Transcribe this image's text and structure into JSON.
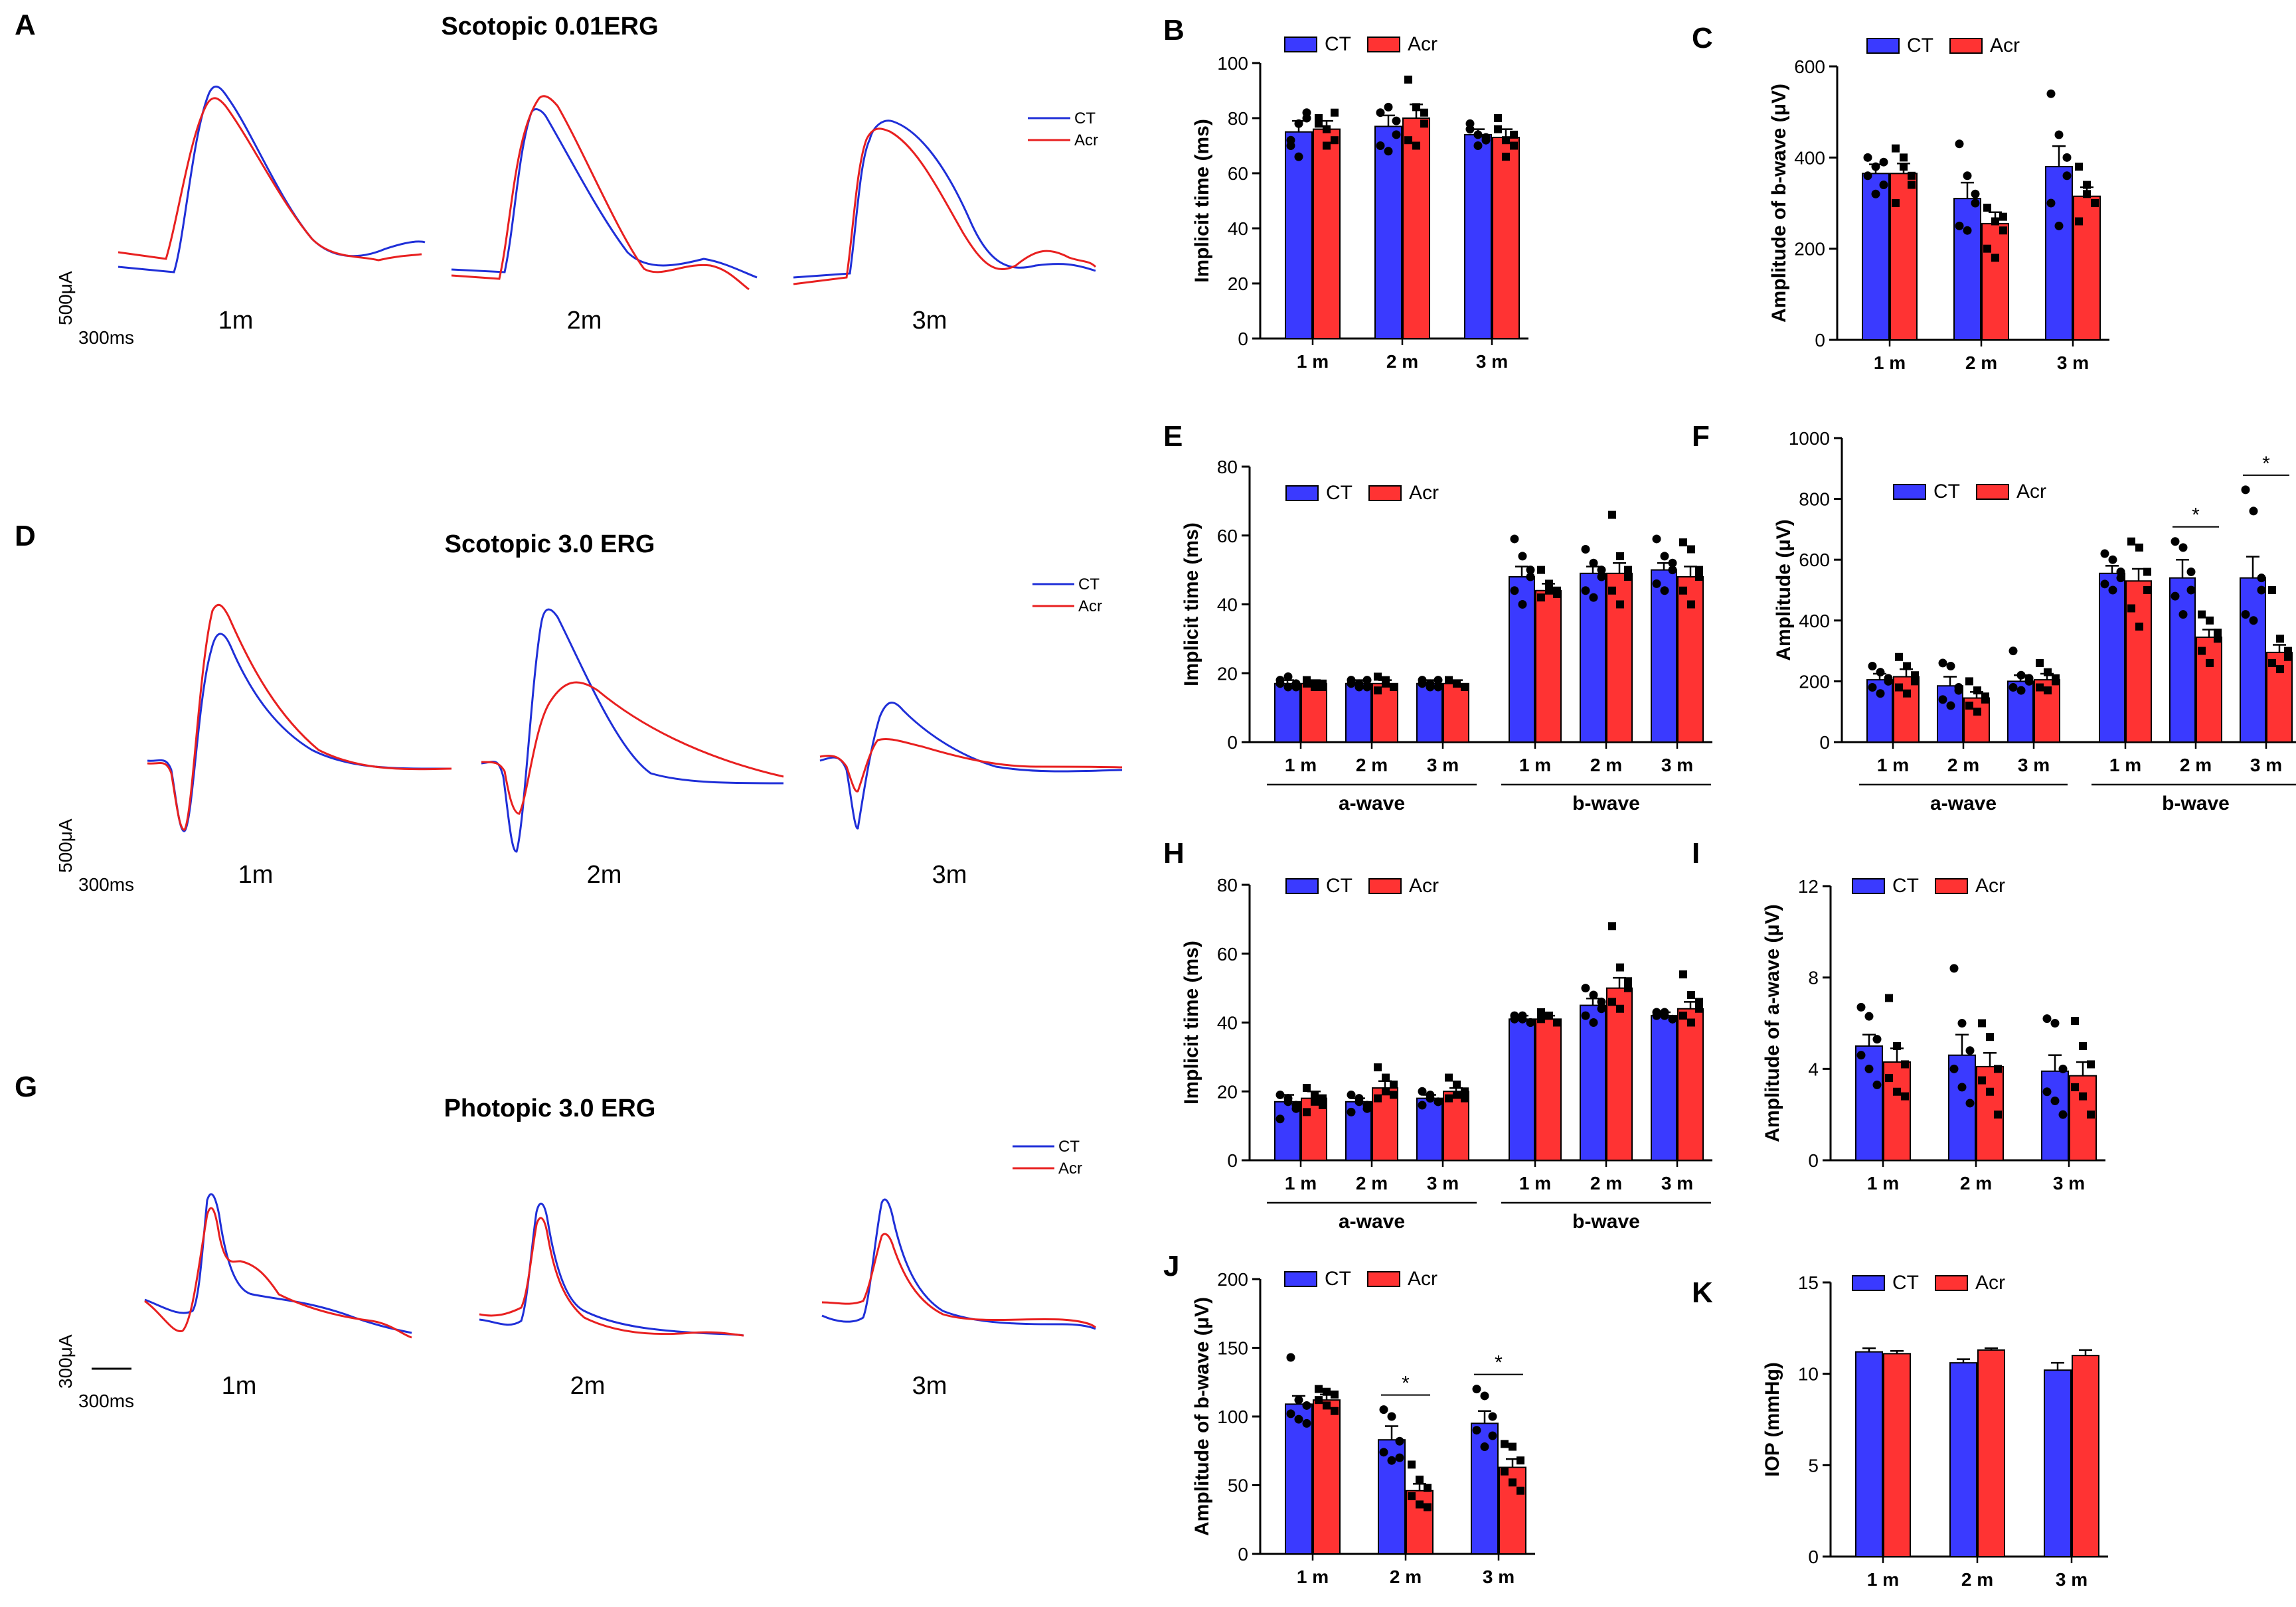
{
  "colors": {
    "ct": "#3a3aff",
    "acr": "#ff3333",
    "ct_trace": "#1f2fd8",
    "acr_trace": "#e82020",
    "ink": "#000000"
  },
  "legend": {
    "ct": "CT",
    "acr": "Acr"
  },
  "panel_letters": {
    "a": "A",
    "b": "B",
    "c": "C",
    "d": "D",
    "e": "E",
    "f": "F",
    "g": "G",
    "h": "H",
    "i": "I",
    "j": "J",
    "k": "K"
  },
  "traces": {
    "a": {
      "title": "Scotopic 0.01ERG",
      "labels": [
        "1m",
        "2m",
        "3m"
      ],
      "scale_amp": "500μA",
      "scale_time": "300ms"
    },
    "d": {
      "title": "Scotopic 3.0 ERG",
      "labels": [
        "1m",
        "2m",
        "3m"
      ],
      "scale_amp": "500μA",
      "scale_time": "300ms"
    },
    "g": {
      "title": "Photopic 3.0 ERG",
      "labels": [
        "1m",
        "2m",
        "3m"
      ],
      "scale_amp": "300μA",
      "scale_time": "300ms"
    }
  },
  "chart_data": [
    {
      "panel": "B",
      "type": "bar",
      "ylabel": "Implicit time (ms)",
      "ylim": [
        0,
        100
      ],
      "yticks": [
        0,
        20,
        40,
        60,
        80,
        100
      ],
      "categories": [
        "1 m",
        "2 m",
        "3 m"
      ],
      "series": [
        {
          "name": "CT",
          "values": [
            75,
            77,
            74
          ],
          "err": [
            4,
            4,
            2
          ],
          "points": [
            [
              70,
              78,
              82,
              72,
              66,
              80
            ],
            [
              82,
              84,
              74,
              70,
              68,
              79
            ],
            [
              76,
              74,
              72,
              78,
              70,
              73
            ]
          ]
        },
        {
          "name": "Acr",
          "values": [
            76,
            80,
            73
          ],
          "err": [
            3,
            5,
            3
          ],
          "points": [
            [
              80,
              76,
              72,
              78,
              70,
              82
            ],
            [
              94,
              84,
              78,
              72,
              70,
              82
            ],
            [
              80,
              72,
              70,
              76,
              66,
              74
            ]
          ]
        }
      ],
      "significance": []
    },
    {
      "panel": "C",
      "type": "bar",
      "ylabel": "Amplitude of b-wave (μV)",
      "ylim": [
        0,
        600
      ],
      "yticks": [
        0,
        200,
        400,
        600
      ],
      "categories": [
        "1 m",
        "2 m",
        "3 m"
      ],
      "series": [
        {
          "name": "CT",
          "values": [
            365,
            310,
            380
          ],
          "err": [
            20,
            35,
            45
          ],
          "points": [
            [
              400,
              380,
              340,
              360,
              320,
              390
            ],
            [
              430,
              360,
              300,
              250,
              240,
              320
            ],
            [
              540,
              450,
              360,
              300,
              250,
              400
            ]
          ]
        },
        {
          "name": "Acr",
          "values": [
            365,
            255,
            315
          ],
          "err": [
            22,
            25,
            20
          ],
          "points": [
            [
              420,
              400,
              340,
              300,
              380,
              360
            ],
            [
              290,
              260,
              240,
              200,
              180,
              270
            ],
            [
              380,
              340,
              300,
              260,
              320,
              300
            ]
          ]
        }
      ],
      "significance": []
    },
    {
      "panel": "E",
      "type": "bar",
      "ylabel": "Implicit time (ms)",
      "ylim": [
        0,
        80
      ],
      "yticks": [
        0,
        20,
        40,
        60,
        80
      ],
      "categories": [
        "1 m",
        "2 m",
        "3 m",
        "1 m",
        "2 m",
        "3 m"
      ],
      "groups": [
        {
          "label": "a-wave",
          "span": [
            0,
            2
          ]
        },
        {
          "label": "b-wave",
          "span": [
            3,
            5
          ]
        }
      ],
      "series": [
        {
          "name": "CT",
          "values": [
            17,
            17,
            17,
            48,
            49,
            50
          ],
          "err": [
            1,
            1,
            1,
            3,
            2,
            2
          ],
          "points": [
            [
              18,
              16,
              17,
              17,
              19,
              16
            ],
            [
              18,
              17,
              16,
              17,
              16,
              18
            ],
            [
              18,
              17,
              16,
              17,
              16,
              18
            ],
            [
              59,
              54,
              48,
              44,
              40,
              50
            ],
            [
              56,
              52,
              48,
              44,
              42,
              50
            ],
            [
              59,
              54,
              50,
              46,
              44,
              52
            ]
          ]
        },
        {
          "name": "Acr",
          "values": [
            17,
            17,
            17,
            44,
            49,
            48
          ],
          "err": [
            1,
            1,
            1,
            2,
            3,
            3
          ],
          "points": [
            [
              18,
              17,
              16,
              17,
              16,
              17
            ],
            [
              19,
              18,
              16,
              15,
              17,
              16
            ],
            [
              18,
              17,
              16,
              18,
              17,
              16
            ],
            [
              50,
              46,
              44,
              42,
              44,
              43
            ],
            [
              66,
              54,
              50,
              44,
              40,
              48
            ],
            [
              58,
              56,
              48,
              44,
              40,
              50
            ]
          ]
        }
      ],
      "significance": []
    },
    {
      "panel": "F",
      "type": "bar",
      "ylabel": "Amplitude (μV)",
      "ylim": [
        0,
        1000
      ],
      "yticks": [
        0,
        200,
        400,
        600,
        800,
        1000
      ],
      "categories": [
        "1 m",
        "2 m",
        "3 m",
        "1 m",
        "2 m",
        "3 m"
      ],
      "groups": [
        {
          "label": "a-wave",
          "span": [
            0,
            2
          ]
        },
        {
          "label": "b-wave",
          "span": [
            3,
            5
          ]
        }
      ],
      "series": [
        {
          "name": "CT",
          "values": [
            205,
            185,
            200,
            555,
            540,
            540
          ],
          "err": [
            20,
            30,
            20,
            25,
            60,
            70
          ],
          "points": [
            [
              250,
              230,
              200,
              180,
              160,
              210
            ],
            [
              260,
              250,
              180,
              140,
              120,
              170
            ],
            [
              300,
              220,
              200,
              180,
              170,
              210
            ],
            [
              620,
              600,
              560,
              520,
              500,
              540
            ],
            [
              660,
              640,
              560,
              480,
              420,
              500
            ],
            [
              830,
              760,
              500,
              420,
              400,
              540
            ]
          ]
        },
        {
          "name": "Acr",
          "values": [
            215,
            145,
            205,
            530,
            345,
            295
          ],
          "err": [
            25,
            20,
            20,
            40,
            25,
            25
          ],
          "points": [
            [
              280,
              250,
              220,
              180,
              160,
              200
            ],
            [
              200,
              170,
              140,
              120,
              100,
              150
            ],
            [
              260,
              230,
              200,
              180,
              170,
              210
            ],
            [
              660,
              640,
              560,
              440,
              380,
              500
            ],
            [
              420,
              400,
              360,
              300,
              260,
              340
            ],
            [
              500,
              340,
              300,
              260,
              240,
              280
            ]
          ]
        }
      ],
      "significance": [
        {
          "index": 4,
          "label": "*"
        },
        {
          "index": 5,
          "label": "*"
        }
      ]
    },
    {
      "panel": "H",
      "type": "bar",
      "ylabel": "Implicit time (ms)",
      "ylim": [
        0,
        80
      ],
      "yticks": [
        0,
        20,
        40,
        60,
        80
      ],
      "categories": [
        "1 m",
        "2 m",
        "3 m",
        "1 m",
        "2 m",
        "3 m"
      ],
      "groups": [
        {
          "label": "a-wave",
          "span": [
            0,
            2
          ]
        },
        {
          "label": "b-wave",
          "span": [
            3,
            5
          ]
        }
      ],
      "series": [
        {
          "name": "CT",
          "values": [
            17,
            17,
            18,
            41,
            45,
            42
          ],
          "err": [
            2,
            1,
            1,
            1,
            2,
            1
          ],
          "points": [
            [
              19,
              17,
              15,
              12,
              18,
              16
            ],
            [
              19,
              17,
              16,
              14,
              18,
              15
            ],
            [
              20,
              19,
              17,
              16,
              18,
              17
            ],
            [
              42,
              41,
              40,
              41,
              42,
              40
            ],
            [
              50,
              48,
              44,
              42,
              40,
              46
            ],
            [
              43,
              42,
              41,
              42,
              43,
              41
            ]
          ]
        },
        {
          "name": "Acr",
          "values": [
            18,
            21,
            20,
            41,
            50,
            44
          ],
          "err": [
            2,
            2,
            1,
            1,
            3,
            2
          ],
          "points": [
            [
              21,
              19,
              18,
              14,
              17,
              16
            ],
            [
              27,
              24,
              22,
              18,
              20,
              19
            ],
            [
              24,
              22,
              20,
              18,
              19,
              18
            ],
            [
              43,
              42,
              40,
              41,
              42,
              40
            ],
            [
              68,
              56,
              52,
              46,
              44,
              50
            ],
            [
              54,
              48,
              44,
              42,
              40,
              46
            ]
          ]
        }
      ],
      "significance": []
    },
    {
      "panel": "I",
      "type": "bar",
      "ylabel": "Amplitude of a-wave (μV)",
      "ylim": [
        0,
        12
      ],
      "yticks": [
        0,
        4,
        8,
        12
      ],
      "categories": [
        "1 m",
        "2 m",
        "3 m"
      ],
      "series": [
        {
          "name": "CT",
          "values": [
            5.0,
            4.6,
            3.9
          ],
          "err": [
            0.5,
            0.9,
            0.7
          ],
          "points": [
            [
              6.7,
              6.3,
              5.3,
              4.6,
              4.0,
              3.3
            ],
            [
              8.4,
              6.0,
              4.8,
              4.0,
              3.2,
              2.5
            ],
            [
              6.2,
              6.0,
              4.0,
              3.0,
              2.6,
              2.0
            ]
          ]
        },
        {
          "name": "Acr",
          "values": [
            4.3,
            4.1,
            3.7
          ],
          "err": [
            0.6,
            0.6,
            0.6
          ],
          "points": [
            [
              7.1,
              5.0,
              4.2,
              3.6,
              3.0,
              2.8
            ],
            [
              6.0,
              5.4,
              4.0,
              3.5,
              3.0,
              2.0
            ],
            [
              6.1,
              5.0,
              4.2,
              3.2,
              2.8,
              2.0
            ]
          ]
        }
      ],
      "significance": []
    },
    {
      "panel": "J",
      "type": "bar",
      "ylabel": "Amplitude of b-wave (μV)",
      "ylim": [
        0,
        200
      ],
      "yticks": [
        0,
        50,
        100,
        150,
        200
      ],
      "categories": [
        "1 m",
        "2 m",
        "3 m"
      ],
      "series": [
        {
          "name": "CT",
          "values": [
            109,
            83,
            95
          ],
          "err": [
            6,
            10,
            9
          ],
          "points": [
            [
              143,
              112,
              108,
              102,
              98,
              95
            ],
            [
              105,
              100,
              82,
              74,
              68,
              70
            ],
            [
              120,
              115,
              100,
              90,
              78,
              86
            ]
          ]
        },
        {
          "name": "Acr",
          "values": [
            112,
            46,
            63
          ],
          "err": [
            4,
            5,
            6
          ],
          "points": [
            [
              120,
              118,
              116,
              112,
              108,
              104
            ],
            [
              65,
              54,
              48,
              42,
              36,
              34
            ],
            [
              80,
              78,
              68,
              60,
              52,
              46
            ]
          ]
        }
      ],
      "significance": [
        {
          "index": 1,
          "label": "*"
        },
        {
          "index": 2,
          "label": "*"
        }
      ]
    },
    {
      "panel": "K",
      "type": "bar",
      "ylabel": "IOP (mmHg)",
      "ylim": [
        0,
        15
      ],
      "yticks": [
        0,
        5,
        10,
        15
      ],
      "categories": [
        "1 m",
        "2 m",
        "3 m"
      ],
      "series": [
        {
          "name": "CT",
          "values": [
            11.2,
            10.6,
            10.2
          ],
          "err": [
            0.2,
            0.2,
            0.4
          ],
          "points": []
        },
        {
          "name": "Acr",
          "values": [
            11.1,
            11.3,
            11.0
          ],
          "err": [
            0.15,
            0.1,
            0.3
          ],
          "points": []
        }
      ],
      "significance": []
    }
  ]
}
